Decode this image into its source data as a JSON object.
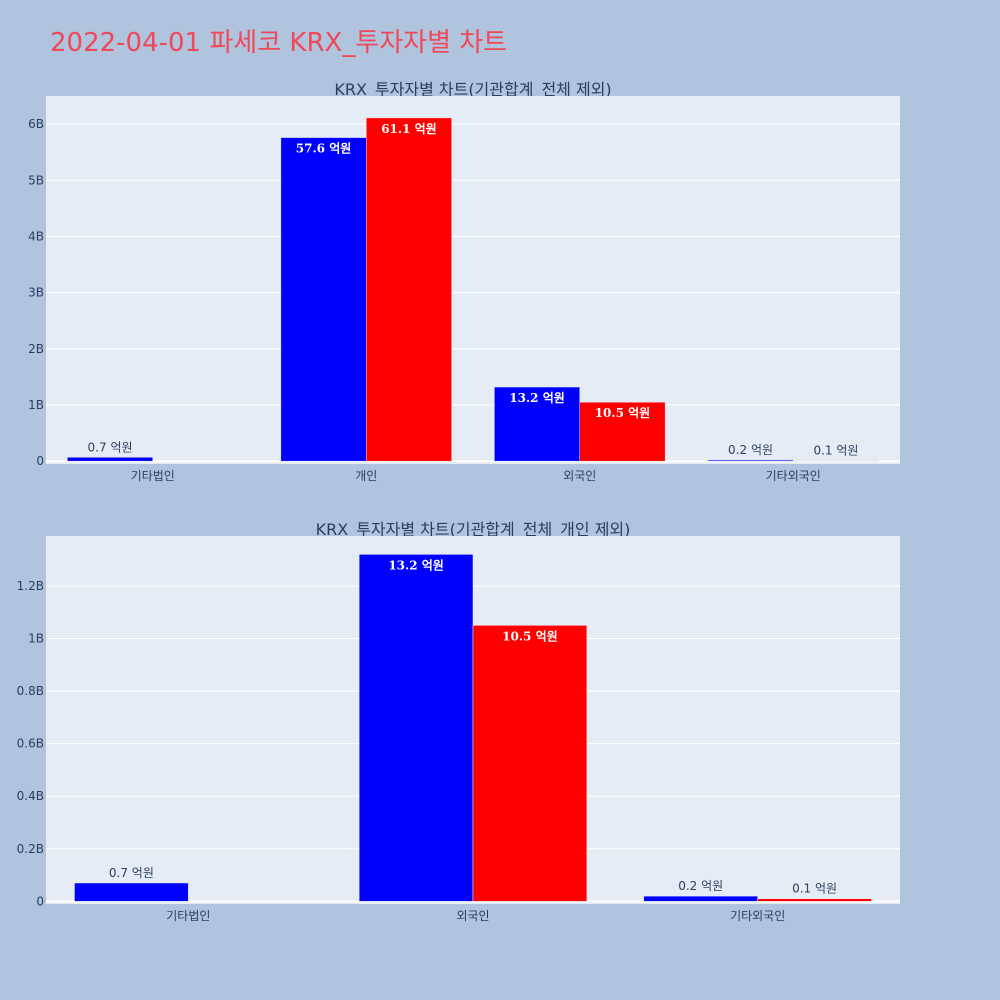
{
  "page": {
    "title": "2022-04-01 파세코 KRX_투자자별 차트"
  },
  "colors": {
    "background": "#b0c4de",
    "plot_bg": "#e5ecf6",
    "grid": "#ffffff",
    "text": "#2a3f5f",
    "title": "#ef4859"
  },
  "chart_data": [
    {
      "type": "bar",
      "title": "KRX_투자자별 차트(기관합계_전체 제외)",
      "categories": [
        "기타법인",
        "개인",
        "외국인",
        "기타외국인"
      ],
      "series": [
        {
          "color": "#0000ff",
          "values": [
            70000000,
            5760000000,
            1320000000,
            20000000
          ],
          "labels": [
            "0.7 억원",
            "57.6 억원",
            "13.2 억원",
            "0.2 억원"
          ]
        },
        {
          "color": "#ff0000",
          "values": [
            0,
            6110000000,
            1050000000,
            10000000
          ],
          "labels": [
            "",
            "61.1 억원",
            "10.5 억원",
            "0.1 억원"
          ]
        }
      ],
      "ylim": [
        -50000000,
        6500000000
      ],
      "yticks": [
        0,
        1000000000,
        2000000000,
        3000000000,
        4000000000,
        5000000000,
        6000000000
      ],
      "yticklabels": [
        "0",
        "1B",
        "2B",
        "3B",
        "4B",
        "5B",
        "6B"
      ],
      "grid": true,
      "legend": "none"
    },
    {
      "type": "bar",
      "title": "KRX_투자자별 차트(기관합계_전체_개인 제외)",
      "categories": [
        "기타법인",
        "외국인",
        "기타외국인"
      ],
      "series": [
        {
          "color": "#0000ff",
          "values": [
            70000000,
            1320000000,
            20000000
          ],
          "labels": [
            "0.7 억원",
            "13.2 억원",
            "0.2 억원"
          ]
        },
        {
          "color": "#ff0000",
          "values": [
            0,
            1050000000,
            10000000
          ],
          "labels": [
            "",
            "10.5 억원",
            "0.1 억원"
          ]
        }
      ],
      "ylim": [
        -10000000,
        1390000000
      ],
      "yticks": [
        0,
        200000000,
        400000000,
        600000000,
        800000000,
        1000000000,
        1200000000
      ],
      "yticklabels": [
        "0",
        "0.2B",
        "0.4B",
        "0.6B",
        "0.8B",
        "1B",
        "1.2B"
      ],
      "grid": true,
      "legend": "none"
    }
  ]
}
